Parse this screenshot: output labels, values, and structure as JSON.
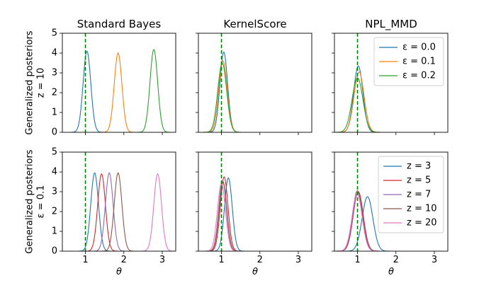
{
  "chart_data": {
    "type": "line",
    "description": "Kernel density estimates of generalized posteriors for theta",
    "x_range": [
      0.4,
      3.35
    ],
    "y_range": [
      0,
      5
    ],
    "x_ticks": [
      1,
      2,
      3
    ],
    "x_tick_labels": [
      "1",
      "2",
      "3"
    ],
    "y_ticks": [
      0,
      1,
      2,
      3,
      4,
      5
    ],
    "y_tick_labels": [
      "0",
      "1",
      "2",
      "3",
      "4",
      "5"
    ],
    "xlabel": "θ",
    "true_theta": 1.0,
    "reference_line_color": "#008000",
    "columns": [
      "Standard Bayes",
      "KernelScore",
      "NPL_MMD"
    ],
    "rows": [
      {
        "ylabel_line1": "Generalized posteriors",
        "ylabel_line2": "z = 10",
        "legend_column": 2,
        "legend_position": "upper-right",
        "legend": [
          {
            "label": "ε = 0.0",
            "color": "#1f77b4"
          },
          {
            "label": "ε = 0.1",
            "color": "#ff7f0e"
          },
          {
            "label": "ε = 0.2",
            "color": "#2ca02c"
          }
        ],
        "panels": [
          {
            "title": "Standard Bayes",
            "series": [
              {
                "name": "ε = 0.0",
                "color": "#1f77b4",
                "peak_x": 1.04,
                "peak_y": 4.1,
                "width": 0.1
              },
              {
                "name": "ε = 0.1",
                "color": "#ff7f0e",
                "peak_x": 1.85,
                "peak_y": 4.0,
                "width": 0.1
              },
              {
                "name": "ε = 0.2",
                "color": "#2ca02c",
                "peak_x": 2.78,
                "peak_y": 4.18,
                "width": 0.1
              }
            ]
          },
          {
            "title": "KernelScore",
            "series": [
              {
                "name": "ε = 0.0",
                "color": "#1f77b4",
                "peak_x": 1.06,
                "peak_y": 4.05,
                "width": 0.1
              },
              {
                "name": "ε = 0.1",
                "color": "#ff7f0e",
                "peak_x": 1.04,
                "peak_y": 3.6,
                "width": 0.11
              },
              {
                "name": "ε = 0.2",
                "color": "#2ca02c",
                "peak_x": 1.02,
                "peak_y": 3.5,
                "width": 0.115
              }
            ]
          },
          {
            "title": "NPL_MMD",
            "series": [
              {
                "name": "ε = 0.0",
                "color": "#1f77b4",
                "peak_x": 1.02,
                "peak_y": 3.35,
                "width": 0.12
              },
              {
                "name": "ε = 0.1",
                "color": "#ff7f0e",
                "peak_x": 1.04,
                "peak_y": 3.05,
                "width": 0.13
              },
              {
                "name": "ε = 0.2",
                "color": "#2ca02c",
                "peak_x": 1.0,
                "peak_y": 2.75,
                "width": 0.14
              }
            ]
          }
        ]
      },
      {
        "ylabel_line1": "Generalized posteriors",
        "ylabel_line2": "ε = 0.1",
        "legend_column": 2,
        "legend_position": "upper-right",
        "legend": [
          {
            "label": "z = 3",
            "color": "#1f77b4"
          },
          {
            "label": "z = 5",
            "color": "#d62728"
          },
          {
            "label": "z = 7",
            "color": "#9467bd"
          },
          {
            "label": "z = 10",
            "color": "#8c564b"
          },
          {
            "label": "z = 20",
            "color": "#e377c2"
          }
        ],
        "panels": [
          {
            "title": "",
            "series": [
              {
                "name": "z = 3",
                "color": "#1f77b4",
                "peak_x": 1.24,
                "peak_y": 3.95,
                "width": 0.1
              },
              {
                "name": "z = 5",
                "color": "#d62728",
                "peak_x": 1.42,
                "peak_y": 3.9,
                "width": 0.1
              },
              {
                "name": "z = 7",
                "color": "#9467bd",
                "peak_x": 1.62,
                "peak_y": 3.95,
                "width": 0.1
              },
              {
                "name": "z = 10",
                "color": "#8c564b",
                "peak_x": 1.85,
                "peak_y": 3.95,
                "width": 0.1
              },
              {
                "name": "z = 20",
                "color": "#e377c2",
                "peak_x": 2.88,
                "peak_y": 3.9,
                "width": 0.1
              }
            ]
          },
          {
            "title": "",
            "series": [
              {
                "name": "z = 3",
                "color": "#1f77b4",
                "peak_x": 1.18,
                "peak_y": 3.7,
                "width": 0.1
              },
              {
                "name": "z = 5",
                "color": "#d62728",
                "peak_x": 1.07,
                "peak_y": 3.75,
                "width": 0.1
              },
              {
                "name": "z = 7",
                "color": "#9467bd",
                "peak_x": 1.03,
                "peak_y": 3.55,
                "width": 0.1
              },
              {
                "name": "z = 10",
                "color": "#8c564b",
                "peak_x": 1.04,
                "peak_y": 3.5,
                "width": 0.1
              },
              {
                "name": "z = 20",
                "color": "#e377c2",
                "peak_x": 1.0,
                "peak_y": 3.4,
                "width": 0.105
              }
            ]
          },
          {
            "title": "",
            "series": [
              {
                "name": "z = 3",
                "color": "#1f77b4",
                "peak_x": 1.26,
                "peak_y": 2.75,
                "width": 0.14
              },
              {
                "name": "z = 5",
                "color": "#d62728",
                "peak_x": 1.02,
                "peak_y": 3.0,
                "width": 0.13
              },
              {
                "name": "z = 7",
                "color": "#9467bd",
                "peak_x": 1.01,
                "peak_y": 2.95,
                "width": 0.13
              },
              {
                "name": "z = 10",
                "color": "#8c564b",
                "peak_x": 1.0,
                "peak_y": 3.05,
                "width": 0.13
              },
              {
                "name": "z = 20",
                "color": "#e377c2",
                "peak_x": 0.99,
                "peak_y": 2.9,
                "width": 0.13
              }
            ]
          }
        ]
      }
    ]
  }
}
